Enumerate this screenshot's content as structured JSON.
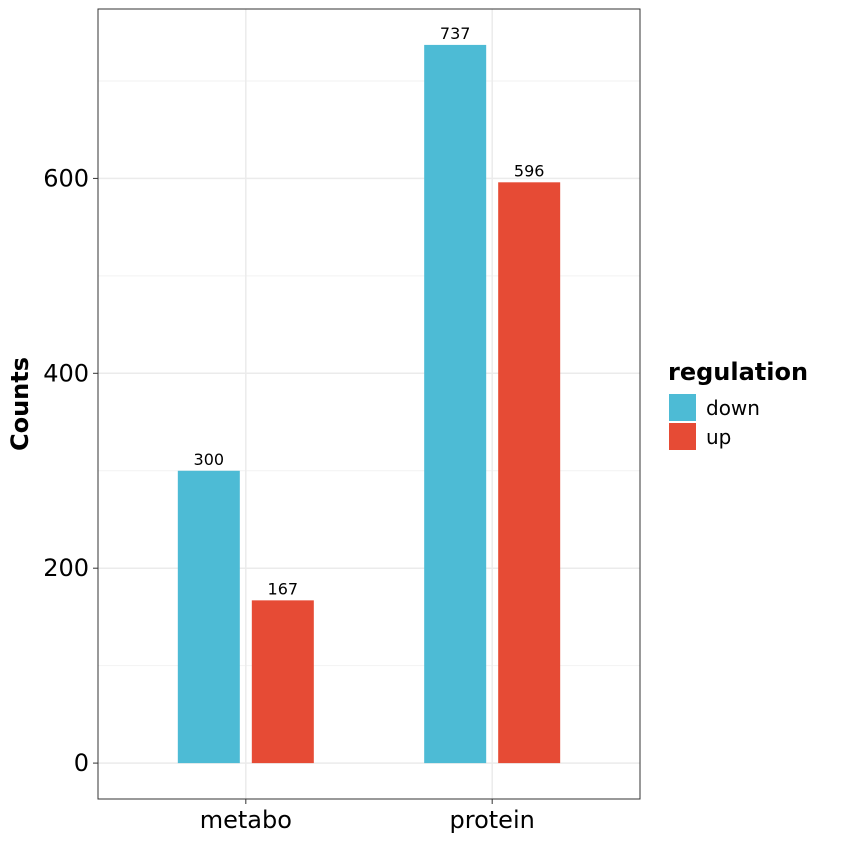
{
  "chart_data": {
    "type": "bar",
    "categories": [
      "metabo",
      "protein"
    ],
    "series": [
      {
        "name": "down",
        "color": "#4DBBD5",
        "values": [
          300,
          737
        ]
      },
      {
        "name": "up",
        "color": "#E64B35",
        "values": [
          167,
          596
        ]
      }
    ],
    "xlabel": "",
    "ylabel": "Counts",
    "ylim": [
      -36.85,
      773.85
    ],
    "yticks": [
      0,
      200,
      400,
      600
    ],
    "grid": true,
    "legend": {
      "title": "regulation",
      "position": "right"
    }
  }
}
